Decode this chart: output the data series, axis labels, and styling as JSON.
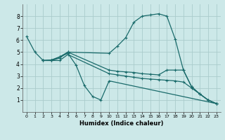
{
  "xlabel": "Humidex (Indice chaleur)",
  "bg_color": "#cce8e8",
  "grid_color": "#aacccc",
  "line_color": "#1a6b6b",
  "xlim": [
    -0.5,
    23.5
  ],
  "ylim": [
    0,
    9
  ],
  "xticks": [
    0,
    1,
    2,
    3,
    4,
    5,
    6,
    7,
    8,
    9,
    10,
    11,
    12,
    13,
    14,
    15,
    16,
    17,
    18,
    19,
    20,
    21,
    22,
    23
  ],
  "yticks": [
    1,
    2,
    3,
    4,
    5,
    6,
    7,
    8
  ],
  "line1_x": [
    0,
    1,
    2,
    3,
    4,
    5,
    10,
    11,
    12,
    13,
    14,
    15,
    16,
    17,
    18,
    19,
    20,
    21,
    22,
    23
  ],
  "line1_y": [
    6.3,
    5.0,
    4.3,
    4.35,
    4.6,
    5.0,
    4.9,
    5.5,
    6.2,
    7.5,
    8.0,
    8.1,
    8.2,
    8.0,
    6.1,
    3.5,
    2.1,
    1.5,
    1.0,
    0.7
  ],
  "line2_x": [
    2,
    3,
    4,
    5,
    6,
    7,
    8,
    9,
    10,
    23
  ],
  "line2_y": [
    4.3,
    4.3,
    4.6,
    4.9,
    3.9,
    2.2,
    1.3,
    1.0,
    2.6,
    0.7
  ],
  "line3_x": [
    2,
    3,
    4,
    5,
    10,
    11,
    12,
    13,
    14,
    15,
    16,
    17,
    18,
    19,
    20,
    21,
    22,
    23
  ],
  "line3_y": [
    4.3,
    4.3,
    4.5,
    5.0,
    3.5,
    3.4,
    3.35,
    3.3,
    3.2,
    3.15,
    3.1,
    3.5,
    3.5,
    3.5,
    2.1,
    1.5,
    1.0,
    0.7
  ],
  "line4_x": [
    2,
    3,
    4,
    5,
    10,
    11,
    12,
    13,
    14,
    15,
    16,
    17,
    18,
    19,
    20,
    21,
    22,
    23
  ],
  "line4_y": [
    4.3,
    4.3,
    4.3,
    4.8,
    3.2,
    3.1,
    3.0,
    2.9,
    2.8,
    2.75,
    2.7,
    2.65,
    2.6,
    2.5,
    2.0,
    1.5,
    1.0,
    0.7
  ]
}
